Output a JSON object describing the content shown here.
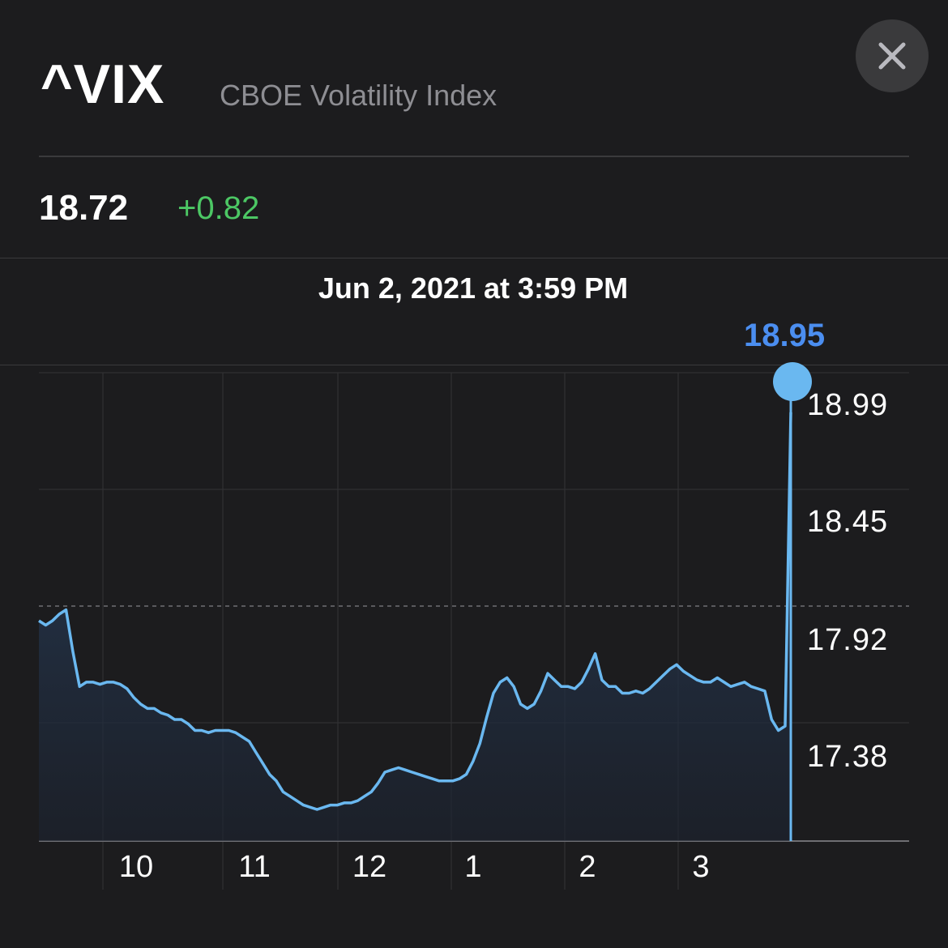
{
  "header": {
    "symbol": "^VIX",
    "name": "CBOE Volatility Index",
    "close_icon": "close-icon"
  },
  "quote": {
    "price": "18.72",
    "change": "+0.82",
    "change_color": "#4cc764"
  },
  "scrub": {
    "datetime": "Jun 2, 2021 at 3:59 PM",
    "value": "18.95",
    "value_color": "#4b8ef0"
  },
  "chart_data": {
    "type": "area",
    "series": [
      {
        "line_color": "#6ab8f0",
        "values": [
          18.0,
          17.98,
          18.0,
          18.03,
          18.05,
          17.86,
          17.7,
          17.72,
          17.72,
          17.71,
          17.72,
          17.72,
          17.71,
          17.69,
          17.65,
          17.62,
          17.6,
          17.6,
          17.58,
          17.57,
          17.55,
          17.55,
          17.53,
          17.5,
          17.5,
          17.49,
          17.5,
          17.5,
          17.5,
          17.49,
          17.47,
          17.45,
          17.4,
          17.35,
          17.3,
          17.27,
          17.22,
          17.2,
          17.18,
          17.16,
          17.15,
          17.14,
          17.15,
          17.16,
          17.16,
          17.17,
          17.17,
          17.18,
          17.2,
          17.22,
          17.26,
          17.31,
          17.32,
          17.33,
          17.32,
          17.31,
          17.3,
          17.29,
          17.28,
          17.27,
          17.27,
          17.27,
          17.28,
          17.3,
          17.36,
          17.44,
          17.56,
          17.67,
          17.72,
          17.74,
          17.7,
          17.62,
          17.6,
          17.62,
          17.68,
          17.76,
          17.73,
          17.7,
          17.7,
          17.69,
          17.72,
          17.78,
          17.85,
          17.73,
          17.7,
          17.7,
          17.67,
          17.67,
          17.68,
          17.67,
          17.69,
          17.72,
          17.75,
          17.78,
          17.8,
          17.77,
          17.75,
          17.73,
          17.72,
          17.72,
          17.74,
          17.72,
          17.7,
          17.71,
          17.72,
          17.7,
          17.69,
          17.68,
          17.55,
          17.5,
          17.52,
          18.95
        ]
      }
    ],
    "y_ticks": [
      "18.99",
      "18.45",
      "17.92",
      "17.38"
    ],
    "x_ticks": [
      "10",
      "11",
      "12",
      "1",
      "2",
      "3"
    ],
    "previous_close_line": 17.92,
    "grid": true,
    "y_axis_side": "right"
  }
}
